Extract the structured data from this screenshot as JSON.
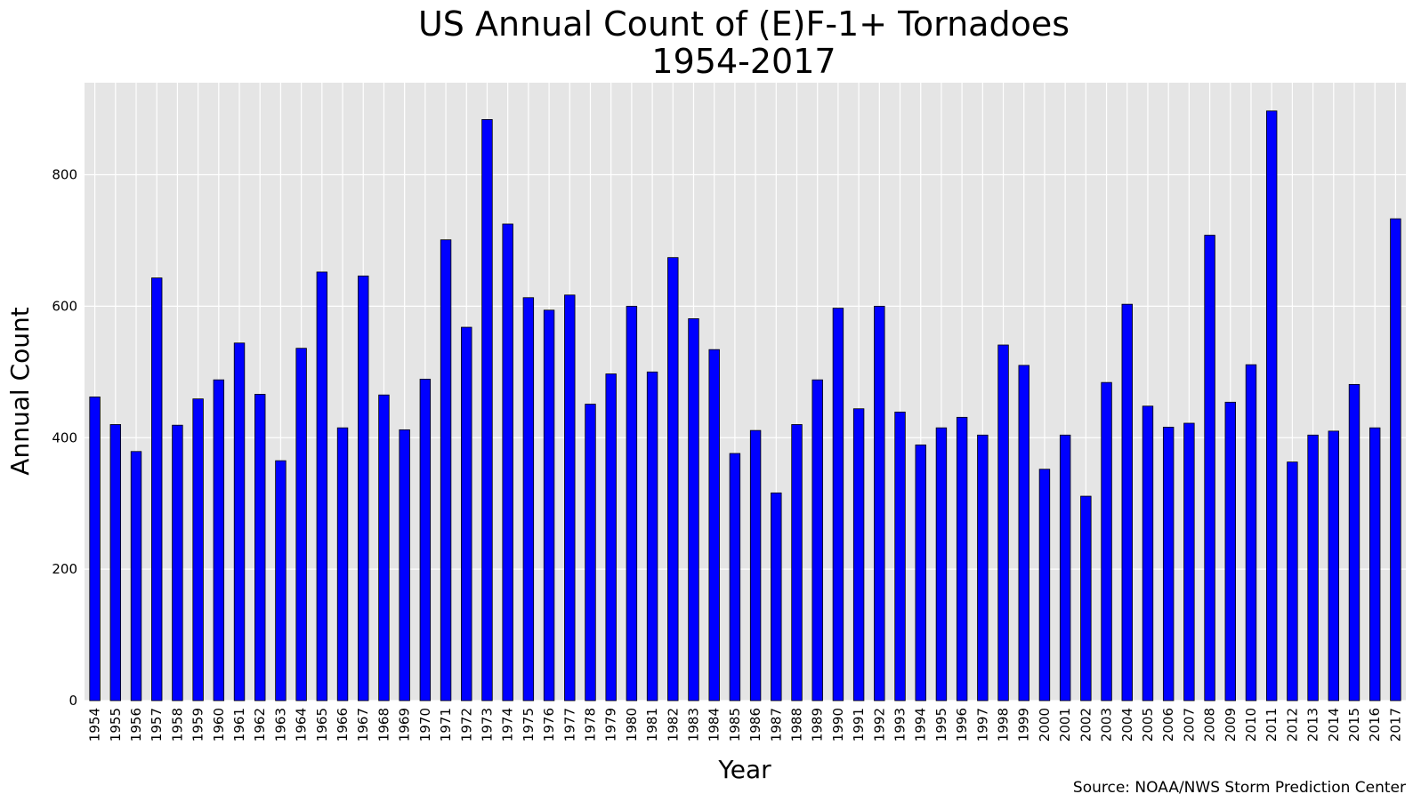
{
  "chart_data": {
    "type": "bar",
    "title": "US Annual Count of (E)F-1+ Tornadoes",
    "subtitle": "1954-2017",
    "xlabel": "Year",
    "ylabel": "Annual Count",
    "source": "Source: NOAA/NWS Storm Prediction Center",
    "ylim": [
      0,
      940
    ],
    "yticks": [
      0,
      200,
      400,
      600,
      800
    ],
    "grid": true,
    "bar_color": "#0000ff",
    "plot_background": "#e5e5e5",
    "categories": [
      "1954",
      "1955",
      "1956",
      "1957",
      "1958",
      "1959",
      "1960",
      "1961",
      "1962",
      "1963",
      "1964",
      "1965",
      "1966",
      "1967",
      "1968",
      "1969",
      "1970",
      "1971",
      "1972",
      "1973",
      "1974",
      "1975",
      "1976",
      "1977",
      "1978",
      "1979",
      "1980",
      "1981",
      "1982",
      "1983",
      "1984",
      "1985",
      "1986",
      "1987",
      "1988",
      "1989",
      "1990",
      "1991",
      "1992",
      "1993",
      "1994",
      "1995",
      "1996",
      "1997",
      "1998",
      "1999",
      "2000",
      "2001",
      "2002",
      "2003",
      "2004",
      "2005",
      "2006",
      "2007",
      "2008",
      "2009",
      "2010",
      "2011",
      "2012",
      "2013",
      "2014",
      "2015",
      "2016",
      "2017"
    ],
    "values": [
      462,
      420,
      379,
      643,
      419,
      459,
      488,
      544,
      466,
      365,
      536,
      652,
      415,
      646,
      465,
      412,
      489,
      701,
      568,
      884,
      725,
      613,
      594,
      617,
      451,
      497,
      600,
      500,
      674,
      581,
      534,
      376,
      411,
      316,
      420,
      488,
      597,
      444,
      600,
      439,
      389,
      415,
      431,
      404,
      541,
      510,
      352,
      404,
      311,
      484,
      603,
      448,
      416,
      422,
      708,
      454,
      511,
      897,
      363,
      404,
      410,
      481,
      415,
      733
    ]
  }
}
